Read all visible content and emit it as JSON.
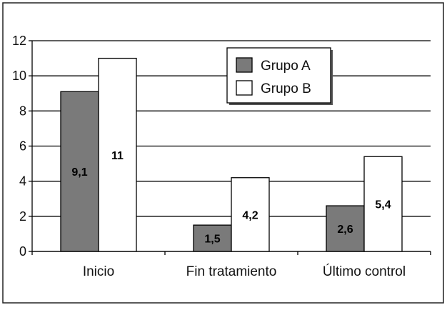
{
  "chart_data": {
    "type": "bar",
    "categories": [
      "Inicio",
      "Fin tratamiento",
      "Último control"
    ],
    "series": [
      {
        "name": "Grupo A",
        "values": [
          9.1,
          1.5,
          2.6
        ],
        "labels": [
          "9,1",
          "1,5",
          "2,6"
        ],
        "color": "#7a7a7a"
      },
      {
        "name": "Grupo B",
        "values": [
          11,
          4.2,
          5.4
        ],
        "labels": [
          "11",
          "4,2",
          "5,4"
        ],
        "color": "#ffffff"
      }
    ],
    "ylim": [
      0,
      12
    ],
    "yticks": [
      0,
      2,
      4,
      6,
      8,
      10,
      12
    ],
    "ytick_labels": [
      "0",
      "2",
      "4",
      "6",
      "8",
      "10",
      "12"
    ],
    "grid": true,
    "legend_position": "top-right",
    "title": "",
    "xlabel": "",
    "ylabel": ""
  }
}
